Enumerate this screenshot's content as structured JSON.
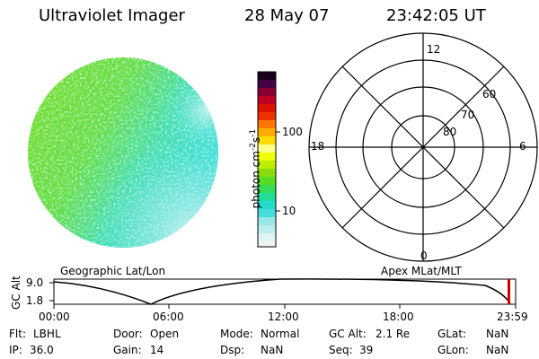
{
  "header": {
    "instrument": "Ultraviolet Imager",
    "date": "28 May 07",
    "time": "23:42:05 UT"
  },
  "colorbar": {
    "label": "photon cm",
    "label_sup1": "-2",
    "label_mid": "s",
    "label_sup2": "-1",
    "ticks": [
      "100",
      "10"
    ]
  },
  "polar_plot": {
    "mlt_labels": {
      "top": "12",
      "left": "18",
      "right": "6",
      "bottom": "0"
    },
    "mlat_labels": [
      "60",
      "70",
      "80"
    ]
  },
  "timeline": {
    "left_label": "Geographic Lat/Lon",
    "right_label": "Apex MLat/MLT",
    "axis_title": "GC Alt",
    "y_ticks": [
      "9.0",
      "1.8"
    ],
    "x_ticks": [
      "00:00",
      "06:00",
      "12:00",
      "18:00",
      "23:59"
    ]
  },
  "status": {
    "flt_label": "Flt:",
    "flt_value": "LBHL",
    "ip_label": "IP:",
    "ip_value": "36.0",
    "door_label": "Door:",
    "door_value": "Open",
    "gain_label": "Gain:",
    "gain_value": "14",
    "mode_label": "Mode:",
    "mode_value": "Normal",
    "dsp_label": "Dsp:",
    "dsp_value": "NaN",
    "gcalt_label": "GC Alt:",
    "gcalt_value": "2.1 Re",
    "seq_label": "Seq:",
    "seq_value": "39",
    "glat_label": "GLat:",
    "glat_value": "NaN",
    "glon_label": "GLon:",
    "glon_value": "NaN"
  },
  "colors": {
    "image_primary": "#66dd33",
    "image_secondary": "#33dddd",
    "marker": "#cc0000"
  }
}
